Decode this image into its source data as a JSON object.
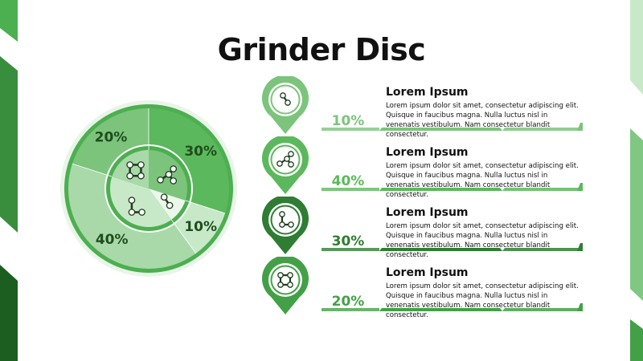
{
  "title": "Grinder Disc",
  "colors": {
    "darkest": "#1b5e20",
    "dark": "#2e7d32",
    "mid": "#43a047",
    "green": "#5cb85c",
    "light": "#7cc47c",
    "pale": "#a9d9a9",
    "paler": "#c8e9c8",
    "palest": "#e3f3e3"
  },
  "chart_data": {
    "type": "pie",
    "labels": [
      "30%",
      "10%",
      "40%",
      "20%"
    ],
    "values": [
      30,
      10,
      40,
      20
    ],
    "colors": [
      "#5cb85c",
      "#c8e9c8",
      "#a9d9a9",
      "#7cc47c"
    ],
    "inner_colors": [
      "#7cc47c",
      "#eaf7ea",
      "#c8e9c8",
      "#a9d9a9"
    ]
  },
  "items": [
    {
      "percent": "10%",
      "heading": "Lorem Ipsum",
      "text": "Lorem ipsum dolor sit amet, consectetur adipiscing elit. Quisque in faucibus magna. Nulla luctus nisl in venenatis vestibulum. Nam consectetur blandit consectetur.",
      "icon": "molecule-icon",
      "color": "#7cc47c"
    },
    {
      "percent": "40%",
      "heading": "Lorem Ipsum",
      "text": "Lorem ipsum dolor sit amet, consectetur adipiscing elit. Quisque in faucibus magna. Nulla luctus nisl in venenatis vestibulum. Nam consectetur blandit consectetur.",
      "icon": "molecule-icon",
      "color": "#5cb85c"
    },
    {
      "percent": "30%",
      "heading": "Lorem Ipsum",
      "text": "Lorem ipsum dolor sit amet, consectetur adipiscing elit. Quisque in faucibus magna. Nulla luctus nisl in venenatis vestibulum. Nam consectetur blandit consectetur.",
      "icon": "molecule-icon",
      "color": "#2e7d32"
    },
    {
      "percent": "20%",
      "heading": "Lorem Ipsum",
      "text": "Lorem ipsum dolor sit amet, consectetur adipiscing elit. Quisque in faucibus magna. Nulla luctus nisl in venenatis vestibulum. Nam consectetur blandit consectetur.",
      "icon": "molecule-icon",
      "color": "#43a047"
    }
  ]
}
